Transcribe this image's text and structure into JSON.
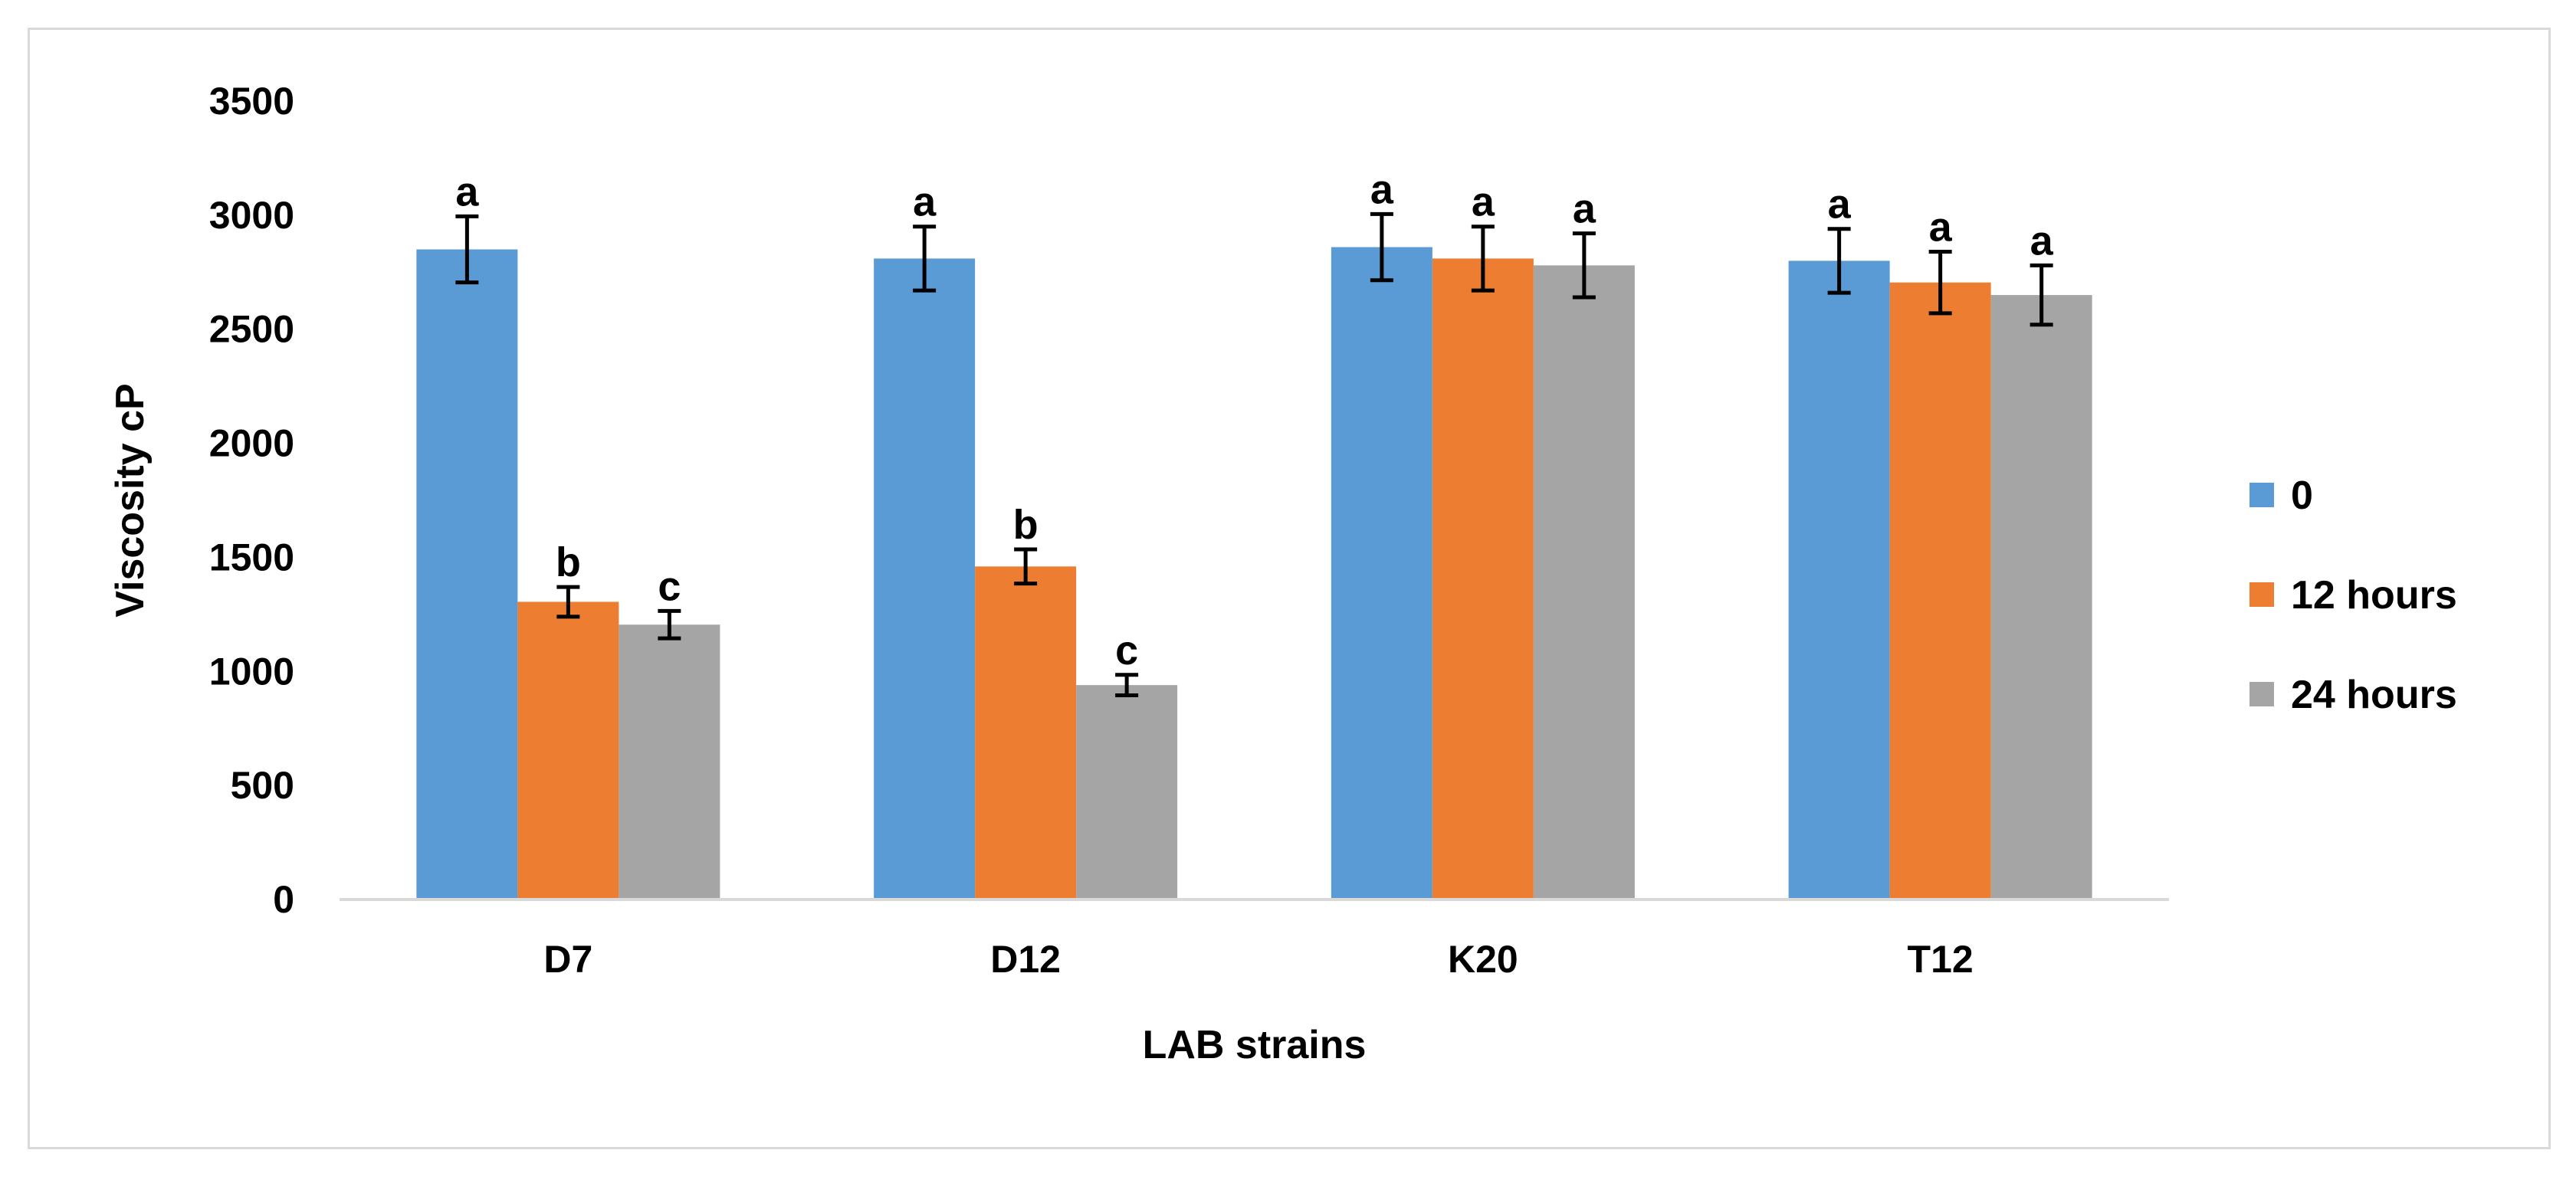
{
  "chart_data": {
    "type": "bar",
    "title": "",
    "xlabel": "LAB strains",
    "ylabel": "Viscosity  cP",
    "ylim": [
      0,
      3500
    ],
    "yticks": [
      0,
      500,
      1000,
      1500,
      2000,
      2500,
      3000,
      3500
    ],
    "grid": false,
    "legend_position": "right",
    "categories": [
      "D7",
      "D12",
      "K20",
      "T12"
    ],
    "series": [
      {
        "name": "0",
        "color": "#5b9bd5",
        "values": [
          2850,
          2810,
          2860,
          2800
        ],
        "errors": [
          145,
          140,
          145,
          140
        ],
        "letters": [
          "a",
          "a",
          "a",
          "a"
        ]
      },
      {
        "name": "12 hours",
        "color": "#ed7d31",
        "values": [
          1305,
          1460,
          2810,
          2705
        ],
        "errors": [
          65,
          75,
          140,
          135
        ],
        "letters": [
          "b",
          "b",
          "a",
          "a"
        ]
      },
      {
        "name": "24 hours",
        "color": "#a5a5a5",
        "values": [
          1205,
          940,
          2780,
          2650
        ],
        "errors": [
          60,
          45,
          140,
          130
        ],
        "letters": [
          "c",
          "c",
          "a",
          "a"
        ]
      }
    ]
  }
}
